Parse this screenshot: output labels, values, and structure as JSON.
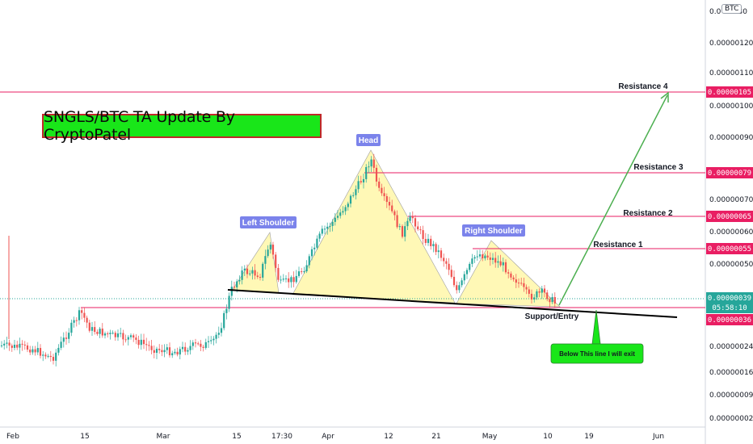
{
  "chart_data": {
    "type": "candlestick",
    "title": "SNGLS/BTC TA Update By CryptoPatel",
    "currency_badge": "BTC",
    "price_axis_ticks": [
      "0.00000130",
      "0.00000120",
      "0.00000110",
      "0.00000100",
      "0.00000090",
      "0.00000080",
      "0.00000070",
      "0.00000060",
      "0.00000050",
      "0.00000040",
      "0.00000036",
      "0.00000024",
      "0.00000016",
      "0.00000009",
      "0.00000002"
    ],
    "price_axis_partial_top": "0.0",
    "time_axis_ticks": [
      "Feb",
      "15",
      "Mar",
      "15",
      "17:30",
      "Apr",
      "12",
      "21",
      "May",
      "10",
      "19",
      "Jun"
    ],
    "current_price": "0.00000039",
    "countdown": "05:58:10",
    "support_price": "0.00000036",
    "resistances": [
      {
        "name": "Resistance 1",
        "price": "0.00000055"
      },
      {
        "name": "Resistance 2",
        "price": "0.00000065"
      },
      {
        "name": "Resistance 3",
        "price": "0.00000079"
      },
      {
        "name": "Resistance 4",
        "price": "0.00000105"
      }
    ],
    "pattern_labels": {
      "left": "Left Shoulder",
      "head": "Head",
      "right": "Right Shoulder"
    },
    "support_label": "Support/Entry",
    "exit_note": "Below This line I will exit",
    "colors": {
      "up": "#26a69a",
      "down": "#ef5350",
      "resistance": "#e91e63",
      "neckline": "#000000",
      "arrow": "#4caf50",
      "pattern_fill": "#fff59d",
      "label_bg": "#7b83eb",
      "title_bg": "#19e619",
      "title_border": "#c0282a",
      "current_price": "#26a69a"
    }
  }
}
